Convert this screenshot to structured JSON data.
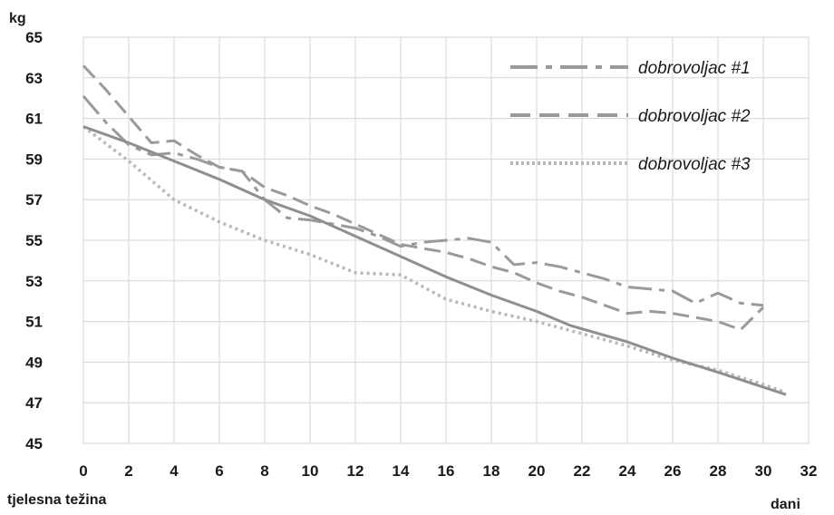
{
  "chart_data": {
    "type": "line",
    "y_unit": "kg",
    "xlabel": "dani",
    "ylabel": "tjelesna težina",
    "xlim": [
      0,
      32
    ],
    "ylim": [
      45,
      65
    ],
    "x_ticks": [
      0,
      2,
      4,
      6,
      8,
      10,
      12,
      14,
      16,
      18,
      20,
      22,
      24,
      26,
      28,
      30,
      32
    ],
    "y_ticks": [
      45,
      47,
      49,
      51,
      53,
      55,
      57,
      59,
      61,
      63,
      65
    ],
    "grid": true,
    "legend_position": "top-right",
    "series": [
      {
        "name": "dobrovoljac #1",
        "style": "dash-dot",
        "color": "#9a9a9a",
        "points": [
          [
            0,
            62.1
          ],
          [
            1,
            60.8
          ],
          [
            2,
            59.7
          ],
          [
            3,
            59.2
          ],
          [
            4,
            59.3
          ],
          [
            5,
            59.0
          ],
          [
            6,
            58.6
          ],
          [
            7,
            58.4
          ],
          [
            8,
            57.0
          ],
          [
            9,
            56.1
          ],
          [
            10,
            56.0
          ],
          [
            11,
            55.8
          ],
          [
            12,
            55.6
          ],
          [
            13,
            55.2
          ],
          [
            14,
            54.7
          ],
          [
            15,
            54.9
          ],
          [
            16,
            55.0
          ],
          [
            17,
            55.1
          ],
          [
            18,
            54.9
          ],
          [
            19,
            53.8
          ],
          [
            20,
            53.9
          ],
          [
            21,
            53.7
          ],
          [
            22,
            53.4
          ],
          [
            23,
            53.1
          ],
          [
            24,
            52.7
          ],
          [
            25,
            52.6
          ],
          [
            26,
            52.5
          ],
          [
            27,
            51.9
          ],
          [
            28,
            52.4
          ],
          [
            29,
            51.9
          ],
          [
            30,
            51.8
          ]
        ]
      },
      {
        "name": "dobrovoljac #2",
        "style": "dashed",
        "color": "#9a9a9a",
        "points": [
          [
            0,
            63.6
          ],
          [
            1,
            62.4
          ],
          [
            2,
            61.1
          ],
          [
            3,
            59.8
          ],
          [
            4,
            59.9
          ],
          [
            5,
            59.2
          ],
          [
            6,
            58.6
          ],
          [
            7,
            58.4
          ],
          [
            8,
            57.6
          ],
          [
            9,
            57.2
          ],
          [
            10,
            56.7
          ],
          [
            11,
            56.3
          ],
          [
            12,
            55.8
          ],
          [
            13,
            55.3
          ],
          [
            14,
            54.8
          ],
          [
            15,
            54.6
          ],
          [
            16,
            54.4
          ],
          [
            17,
            54.1
          ],
          [
            18,
            53.7
          ],
          [
            19,
            53.4
          ],
          [
            20,
            52.9
          ],
          [
            21,
            52.5
          ],
          [
            22,
            52.2
          ],
          [
            23,
            51.8
          ],
          [
            24,
            51.4
          ],
          [
            25,
            51.5
          ],
          [
            26,
            51.4
          ],
          [
            27,
            51.2
          ],
          [
            28,
            51.0
          ],
          [
            29,
            50.6
          ],
          [
            30,
            51.7
          ]
        ]
      },
      {
        "name": "dobrovoljac #3",
        "style": "dotted",
        "color": "#b8b8b8",
        "points": [
          [
            0,
            60.6
          ],
          [
            2,
            58.9
          ],
          [
            4,
            57.0
          ],
          [
            6,
            55.9
          ],
          [
            8,
            55.0
          ],
          [
            10,
            54.3
          ],
          [
            12,
            53.4
          ],
          [
            14,
            53.3
          ],
          [
            16,
            52.1
          ],
          [
            18,
            51.5
          ],
          [
            20,
            51.0
          ],
          [
            22,
            50.4
          ],
          [
            24,
            49.8
          ],
          [
            26,
            49.1
          ],
          [
            28,
            48.6
          ],
          [
            30,
            47.9
          ],
          [
            31,
            47.5
          ]
        ]
      },
      {
        "name": "",
        "style": "solid",
        "color": "#8f8f8f",
        "points": [
          [
            0,
            60.6
          ],
          [
            2,
            59.8
          ],
          [
            4,
            58.9
          ],
          [
            6,
            58.0
          ],
          [
            8,
            57.0
          ],
          [
            10,
            56.2
          ],
          [
            12,
            55.2
          ],
          [
            14,
            54.2
          ],
          [
            16,
            53.2
          ],
          [
            18,
            52.3
          ],
          [
            20,
            51.5
          ],
          [
            21.5,
            50.8
          ],
          [
            24,
            50.0
          ],
          [
            26,
            49.2
          ],
          [
            28,
            48.5
          ],
          [
            31,
            47.4
          ]
        ]
      }
    ]
  }
}
